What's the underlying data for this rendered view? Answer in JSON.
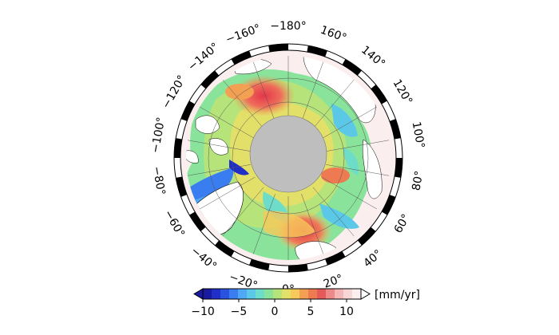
{
  "map": {
    "projection": "north-polar-stereographic",
    "pole_hole": "gray",
    "longitude_labels": [
      {
        "deg": -160,
        "text": "−160°"
      },
      {
        "deg": -180,
        "text": "−180°"
      },
      {
        "deg": 160,
        "text": "160°"
      },
      {
        "deg": 140,
        "text": "140°"
      },
      {
        "deg": 120,
        "text": "120°"
      },
      {
        "deg": 100,
        "text": "100°"
      },
      {
        "deg": 80,
        "text": "80°"
      },
      {
        "deg": 60,
        "text": "60°"
      },
      {
        "deg": 40,
        "text": "40°"
      },
      {
        "deg": 20,
        "text": "20°"
      },
      {
        "deg": 0,
        "text": "0°"
      },
      {
        "deg": -20,
        "text": "−20°"
      },
      {
        "deg": -40,
        "text": "−40°"
      },
      {
        "deg": -60,
        "text": "−60°"
      },
      {
        "deg": -80,
        "text": "−80°"
      },
      {
        "deg": -100,
        "text": "−100°"
      },
      {
        "deg": -120,
        "text": "−120°"
      },
      {
        "deg": -140,
        "text": "−140°"
      }
    ]
  },
  "colorbar": {
    "unit": "[mm/yr]",
    "min": -10,
    "max": 12,
    "ticks": [
      {
        "value": -10,
        "label": "−10"
      },
      {
        "value": -5,
        "label": "−5"
      },
      {
        "value": 0,
        "label": "0"
      },
      {
        "value": 5,
        "label": "5"
      },
      {
        "value": 10,
        "label": "10"
      }
    ],
    "colors": [
      "#1a1aa0",
      "#1f2fc8",
      "#2a52e0",
      "#3a7df0",
      "#4ea8f5",
      "#5cc8e8",
      "#6ddcc8",
      "#8ae39a",
      "#b6e47a",
      "#e3e06a",
      "#f7c85a",
      "#f4a053",
      "#ee7a52",
      "#e45a5a",
      "#ec8a8a",
      "#f4b6b6",
      "#f8d6d6",
      "#fbeeee"
    ]
  }
}
